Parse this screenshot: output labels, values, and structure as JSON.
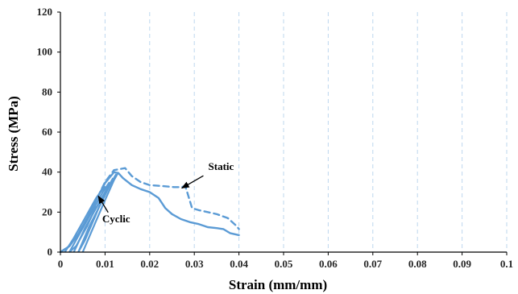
{
  "chart_data": {
    "type": "line",
    "title": "",
    "xlabel": "Strain (mm/mm)",
    "ylabel": "Stress (MPa)",
    "xlim": [
      0,
      0.1
    ],
    "ylim": [
      0,
      120
    ],
    "x_ticks": [
      "0",
      "0.01",
      "0.02",
      "0.03",
      "0.04",
      "0.05",
      "0.06",
      "0.07",
      "0.08",
      "0.09",
      "0.1"
    ],
    "y_ticks": [
      "0",
      "20",
      "40",
      "60",
      "80",
      "100",
      "120"
    ],
    "grid": "vertical dashed",
    "color": "#5B9BD5",
    "series": [
      {
        "name": "Static",
        "style": "dashed",
        "points": [
          [
            0.0,
            0.0
          ],
          [
            0.002,
            3.0
          ],
          [
            0.004,
            9.0
          ],
          [
            0.006,
            17.0
          ],
          [
            0.008,
            26.0
          ],
          [
            0.01,
            35.0
          ],
          [
            0.012,
            41.0
          ],
          [
            0.0145,
            42.0
          ],
          [
            0.016,
            38.0
          ],
          [
            0.018,
            35.0
          ],
          [
            0.02,
            33.5
          ],
          [
            0.023,
            33.0
          ],
          [
            0.0255,
            32.5
          ],
          [
            0.027,
            32.5
          ],
          [
            0.028,
            33.0
          ],
          [
            0.0295,
            22.0
          ],
          [
            0.031,
            21.0
          ],
          [
            0.033,
            20.0
          ],
          [
            0.035,
            19.0
          ],
          [
            0.0375,
            17.0
          ],
          [
            0.0395,
            13.0
          ],
          [
            0.04,
            11.5
          ]
        ]
      },
      {
        "name": "Cyclic",
        "style": "solid",
        "points": [
          [
            0.0,
            0.0
          ],
          [
            0.002,
            3.0
          ],
          [
            0.004,
            9.0
          ],
          [
            0.006,
            17.0
          ],
          [
            0.008,
            26.0
          ],
          [
            0.01,
            34.5
          ],
          [
            0.012,
            40.0
          ],
          [
            0.013,
            39.5
          ],
          [
            0.014,
            37.0
          ],
          [
            0.016,
            33.5
          ],
          [
            0.018,
            31.5
          ],
          [
            0.02,
            30.0
          ],
          [
            0.022,
            27.0
          ],
          [
            0.0235,
            22.0
          ],
          [
            0.025,
            19.0
          ],
          [
            0.027,
            16.5
          ],
          [
            0.029,
            15.0
          ],
          [
            0.031,
            14.0
          ],
          [
            0.033,
            12.5
          ],
          [
            0.035,
            12.0
          ],
          [
            0.0365,
            11.5
          ],
          [
            0.038,
            9.5
          ],
          [
            0.04,
            8.5
          ]
        ]
      }
    ],
    "cycles": [
      [
        [
          0.001,
          0.0
        ],
        [
          0.003,
          7.0
        ],
        [
          0.005,
          15.0
        ],
        [
          0.008,
          27.0
        ],
        [
          0.01,
          33.0
        ]
      ],
      [
        [
          0.002,
          0.0
        ],
        [
          0.0045,
          10.0
        ],
        [
          0.007,
          20.0
        ],
        [
          0.0095,
          30.0
        ],
        [
          0.011,
          35.0
        ]
      ],
      [
        [
          0.003,
          0.0
        ],
        [
          0.0055,
          12.0
        ],
        [
          0.008,
          22.0
        ],
        [
          0.0105,
          32.0
        ],
        [
          0.0118,
          37.0
        ]
      ],
      [
        [
          0.004,
          0.0
        ],
        [
          0.0065,
          13.0
        ],
        [
          0.009,
          24.0
        ],
        [
          0.0112,
          34.0
        ],
        [
          0.0125,
          39.0
        ]
      ],
      [
        [
          0.005,
          0.0
        ],
        [
          0.0075,
          13.0
        ],
        [
          0.01,
          26.0
        ],
        [
          0.012,
          36.0
        ],
        [
          0.013,
          40.0
        ]
      ],
      [
        [
          0.008,
          23.0
        ],
        [
          0.006,
          13.0
        ],
        [
          0.0035,
          3.0
        ],
        [
          0.002,
          0.0
        ]
      ],
      [
        [
          0.01,
          30.0
        ],
        [
          0.008,
          19.0
        ],
        [
          0.0055,
          6.0
        ],
        [
          0.004,
          0.0
        ]
      ]
    ],
    "annotations": [
      {
        "text": "Static",
        "target": [
          0.0272,
          32.0
        ],
        "label_at": [
          0.036,
          41.0
        ]
      },
      {
        "text": "Cyclic",
        "target": [
          0.0085,
          28.0
        ],
        "label_at": [
          0.0125,
          15.0
        ]
      }
    ]
  }
}
